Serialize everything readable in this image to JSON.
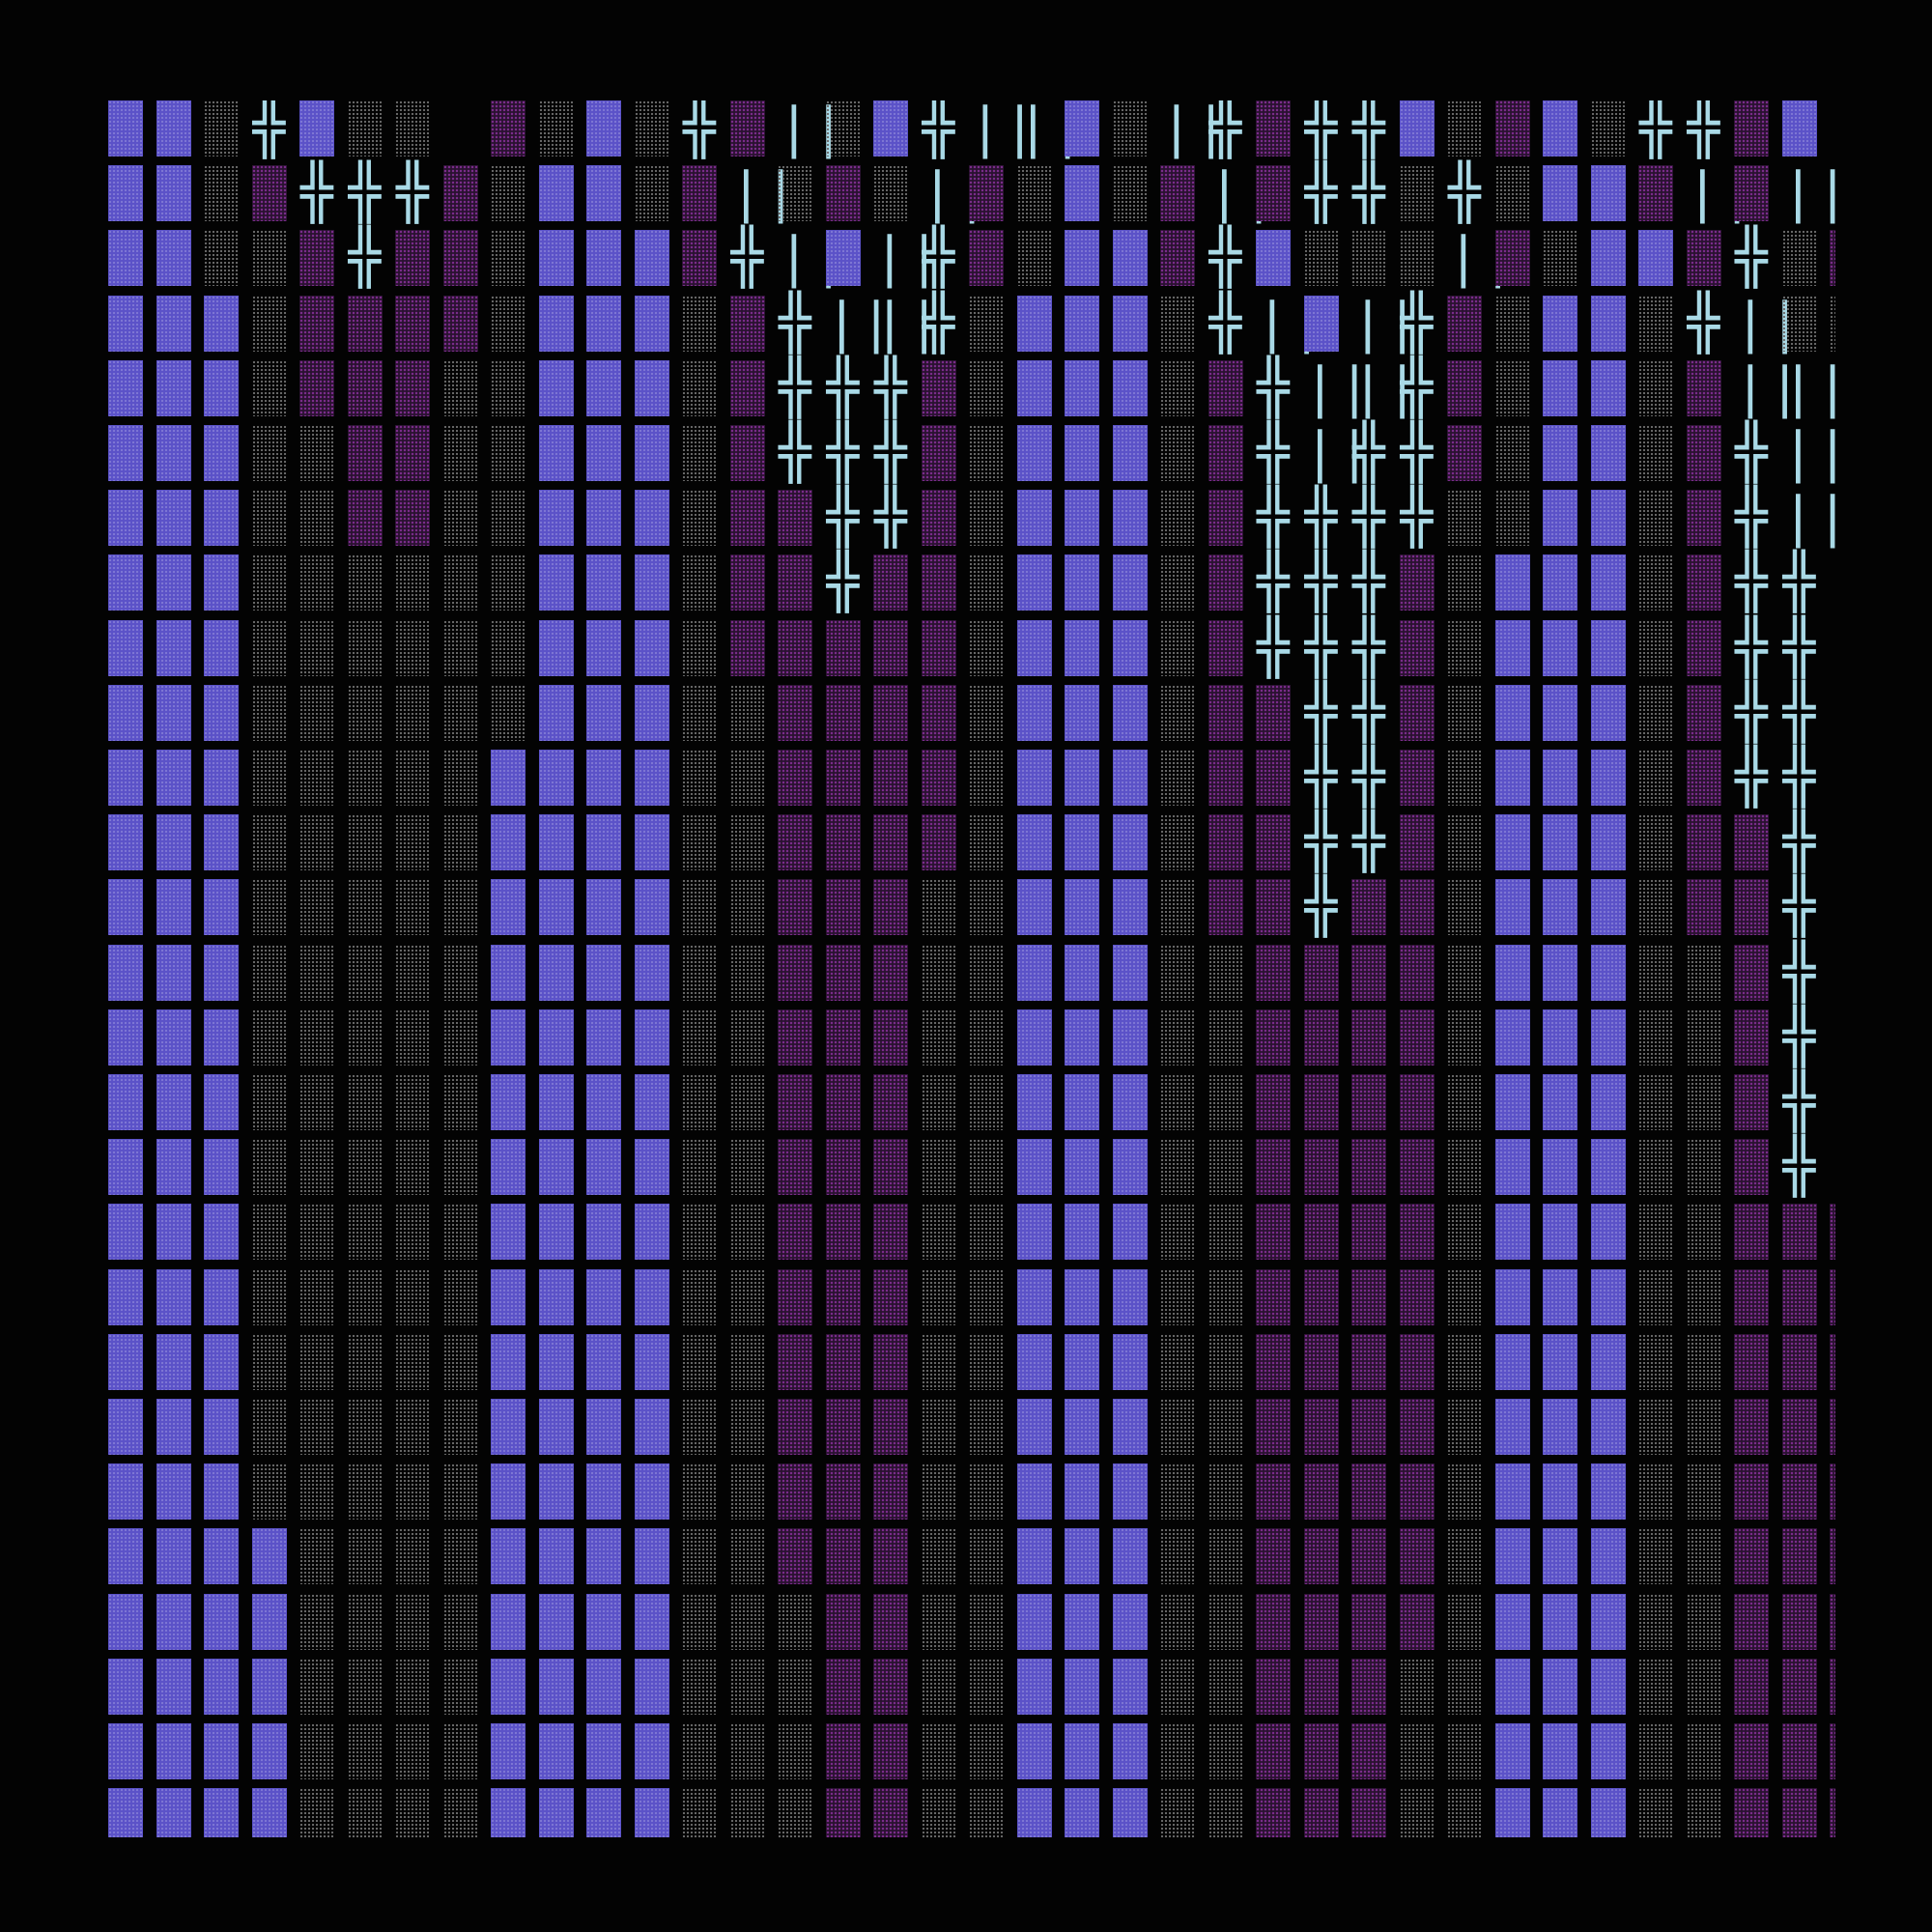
{
  "palette": {
    "background": "#030303",
    "block": "#5b52c8",
    "medium_shade": "#7a2c8a",
    "light_shade": "#6b6b6b",
    "glyph": "#a9d9e6"
  },
  "glyphs": {
    "X": "╬",
    "I": "||",
    "K": ":"
  },
  "grid": {
    "legend": "B = blue full block, L = gray light shade, M = purple medium shade, X = double cross glyph, I = double bar glyph, K = colon, . = empty",
    "rows": [
      "BBLXBLL.MLBLXMILBXIIBLIXMXXBLMBLXXMBI",
      "BBLMXXXMLBBLMILMLIMLBLMIMXXLXLBBMIMI",
      "BBLLMXMMLBBBMXIBIXMLBBMXBLLLIMLBBMXLMM",
      "BBBLMMMMLBBBLMXIIXLBBBLXIBIXMLBBLXILL",
      "BBBLMMMLLBBBLMXXXMLBBBLMXIIXMLBBLMII",
      "BBBLLMMLLBBBLMXXXMLBBBLMXIXXMLBBLMXI",
      "BBBLLMMLLBBBLMMXXMLBBBLMXXXXLLBBLMXI",
      "BBBLLLLLLBBBLMMXMMLBBBLMXXXMLBBBLMXXK",
      "BBBLLLLLLBBBLMMMMMLBBBLMXXXMLBBBLMXXK",
      "BBBLLLLLLBBBLLMMMMLBBBLMMXXMLBBBLMXXK",
      "BBBLLLLLBBBBLLMMMMLBBBLMMXXMLBBBLMXXK",
      "BBBLLLLLBBBBLLMMMMLBBBLMMXXMLBBBLMMXK",
      "BBBLLLLLBBBBLLMMMLLBBBLMMXMMLBBBLMMXK",
      "BBBLLLLLBBBBLLMMMLLBBBLLMMMMLBBBLLMXK",
      "BBBLLLLLBBBBLLMMMLLBBBLLMMMMLBBBLLMXK",
      "BBBLLLLLBBBBLLMMMLLBBBLLMMMMLBBBLLMXK",
      "BBBLLLLLBBBBLLMMMLLBBBLLMMMMLBBBLLMXK",
      "BBBLLLLLBBBBLLMMMLLBBBLLMMMMLBBBLLMMM",
      "BBBLLLLLBBBBLLMMMLLBBBLLMMMMLBBBLLMMM",
      "BBBLLLLLBBBBLLMMMLLBBBLLMMMMLBBBLLMMM",
      "BBBLLLLLBBBBLLMMMLLBBBLLMMMMLBBBLLMMM",
      "BBBLLLLLBBBBLLMMMLLBBBLLMMMMLBBBLLMMM",
      "BBBBLLLLBBBBLLMMMLLBBBLLMMMMLBBBLLMMM",
      "BBBBLLLLBBBBLLLMMLLBBBLLMMMMLBBBLLMMM",
      "BBBBLLLLBBBBLLLMMLLBBBLLMMMLLBBBLLMMM",
      "BBBBLLLLBBBBLLLMMLLBBBLLMMMLLBBBLLMMM",
      "BBBBLLLLBBBBLLLMMLLBBBLLMMMLLBBBLLMMM"
    ]
  }
}
